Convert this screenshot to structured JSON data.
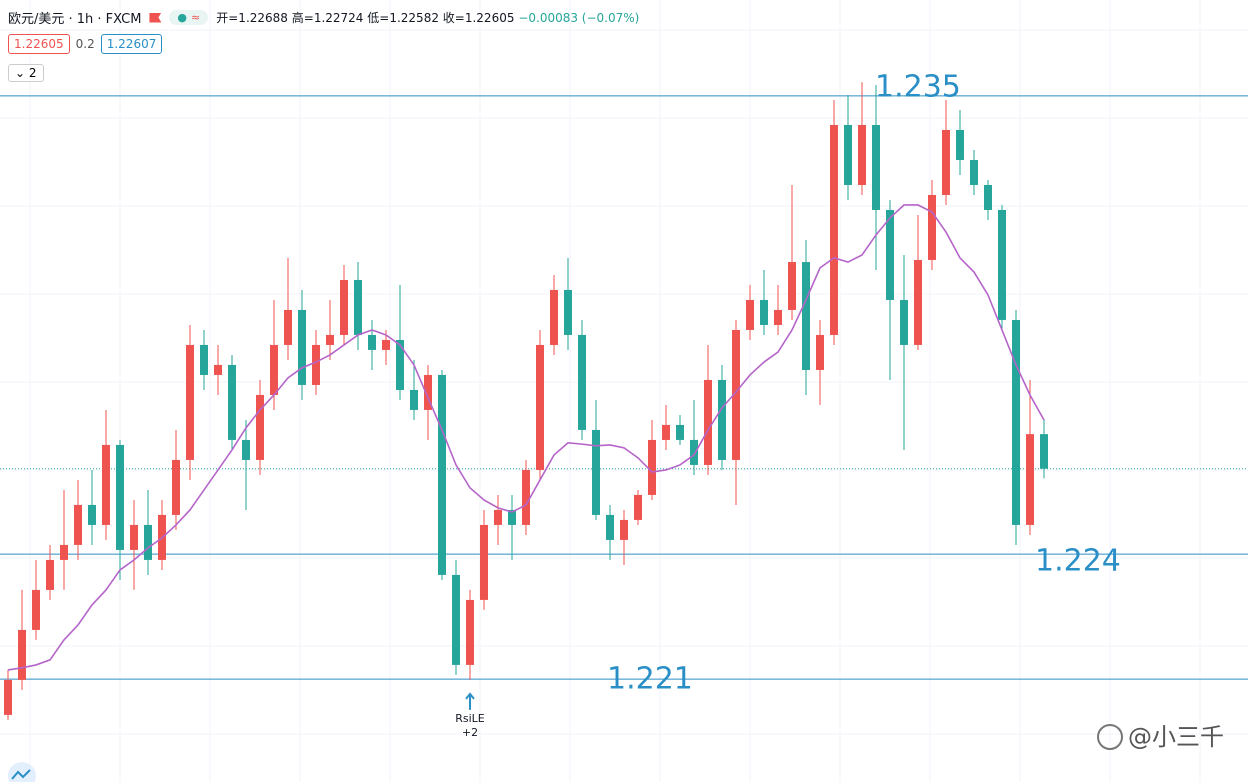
{
  "header": {
    "symbol": "欧元/美元 · 1h · FXCM",
    "ohlc": [
      "开=1.22688",
      "高=1.22724",
      "低=1.22582",
      "收=1.22605",
      "−0.00083 (−0.07%)"
    ],
    "bid": "1.22605",
    "spread": "0.2",
    "ask": "1.22607",
    "indicators_count": "2"
  },
  "watermark": "@小三千",
  "chart_data": {
    "type": "candlestick",
    "up_color": "#ef5350",
    "down_color": "#26a69a",
    "ylim": [
      1.21853,
      1.2373
    ],
    "open": [
      1.22014,
      1.22098,
      1.22218,
      1.22314,
      1.22386,
      1.22422,
      1.22518,
      1.2247,
      1.22662,
      1.2241,
      1.2247,
      1.22386,
      1.22494,
      1.22626,
      1.22902,
      1.2283,
      1.22854,
      1.22674,
      1.22626,
      1.22782,
      1.22902,
      1.22986,
      1.22806,
      1.22902,
      1.22926,
      1.23058,
      1.22926,
      1.2289,
      1.22914,
      1.22794,
      1.22746,
      1.2283,
      1.2235,
      1.22134,
      1.2229,
      1.2247,
      1.22506,
      1.2247,
      1.22602,
      1.22902,
      1.23034,
      1.22926,
      1.22698,
      1.22494,
      1.22434,
      1.22482,
      1.22542,
      1.22674,
      1.2271,
      1.22674,
      1.22614,
      1.22818,
      1.22626,
      1.22938,
      1.2301,
      1.2295,
      1.22986,
      1.23101,
      1.22842,
      1.22926,
      1.2343,
      1.23286,
      1.2343,
      1.23226,
      1.2301,
      1.22902,
      1.23106,
      1.23262,
      1.23418,
      1.23346,
      1.23286,
      1.23226,
      1.22962,
      1.2247,
      1.22688
    ],
    "high": [
      1.22122,
      1.22314,
      1.22386,
      1.22422,
      1.22554,
      1.22578,
      1.22602,
      1.22746,
      1.22674,
      1.2253,
      1.22554,
      1.2253,
      1.22698,
      1.2295,
      1.22938,
      1.22902,
      1.22878,
      1.22722,
      1.22818,
      1.2301,
      1.23111,
      1.23034,
      1.22938,
      1.2301,
      1.23094,
      1.23101,
      1.22962,
      1.22938,
      1.23046,
      1.22866,
      1.22854,
      1.22842,
      1.22386,
      1.22314,
      1.22506,
      1.22542,
      1.22542,
      1.22626,
      1.22938,
      1.2307,
      1.23111,
      1.22962,
      1.2277,
      1.22518,
      1.22506,
      1.22554,
      1.22722,
      1.22758,
      1.22734,
      1.2277,
      1.22902,
      1.22854,
      1.22962,
      1.23046,
      1.23082,
      1.23046,
      1.23286,
      1.23154,
      1.22962,
      1.2349,
      1.23502,
      1.23533,
      1.23526,
      1.2325,
      1.23118,
      1.23214,
      1.23298,
      1.2349,
      1.23466,
      1.2337,
      1.23298,
      1.23238,
      1.22986,
      1.22818,
      1.22724
    ],
    "low": [
      1.22002,
      1.22074,
      1.22194,
      1.2229,
      1.22314,
      1.22386,
      1.22422,
      1.22434,
      1.22338,
      1.22314,
      1.2235,
      1.22362,
      1.22458,
      1.22578,
      1.22794,
      1.22782,
      1.2265,
      1.22506,
      1.2259,
      1.22746,
      1.22866,
      1.2277,
      1.22782,
      1.22866,
      1.22902,
      1.2289,
      1.22842,
      1.22854,
      1.2277,
      1.22722,
      1.22674,
      1.22338,
      1.2211,
      1.22098,
      1.22266,
      1.22422,
      1.22386,
      1.22446,
      1.22578,
      1.22878,
      1.2289,
      1.22674,
      1.22482,
      1.22386,
      1.22374,
      1.2247,
      1.2253,
      1.2265,
      1.22662,
      1.2259,
      1.2259,
      1.22602,
      1.22518,
      1.22914,
      1.22926,
      1.22926,
      1.22962,
      1.22782,
      1.22758,
      1.22902,
      1.2325,
      1.23262,
      1.23082,
      1.22818,
      1.2265,
      1.2289,
      1.23082,
      1.23238,
      1.2331,
      1.23262,
      1.23202,
      1.22938,
      1.22422,
      1.22446,
      1.22582
    ],
    "close": [
      1.22098,
      1.22218,
      1.22314,
      1.22386,
      1.22422,
      1.22518,
      1.2247,
      1.22662,
      1.2241,
      1.2247,
      1.22386,
      1.22494,
      1.22626,
      1.22902,
      1.2283,
      1.22854,
      1.22674,
      1.22626,
      1.22782,
      1.22902,
      1.22986,
      1.22806,
      1.22902,
      1.22926,
      1.23058,
      1.22926,
      1.2289,
      1.22914,
      1.22794,
      1.22746,
      1.2283,
      1.2235,
      1.22134,
      1.2229,
      1.2247,
      1.22506,
      1.2247,
      1.22602,
      1.22902,
      1.23034,
      1.22926,
      1.22698,
      1.22494,
      1.22434,
      1.22482,
      1.22542,
      1.22674,
      1.2271,
      1.22674,
      1.22614,
      1.22818,
      1.22626,
      1.22938,
      1.2301,
      1.2295,
      1.22986,
      1.23101,
      1.22842,
      1.22926,
      1.2343,
      1.23286,
      1.2343,
      1.23226,
      1.2301,
      1.22902,
      1.23106,
      1.23262,
      1.23418,
      1.23346,
      1.23286,
      1.23226,
      1.22962,
      1.2247,
      1.22688,
      1.22605
    ],
    "overlay": {
      "color": "#b565c9",
      "values": [
        1.22122,
        1.22127,
        1.22134,
        1.22146,
        1.22194,
        1.2223,
        1.22278,
        1.22314,
        1.22362,
        1.22386,
        1.22415,
        1.22439,
        1.2247,
        1.22506,
        1.22554,
        1.22602,
        1.2265,
        1.22703,
        1.22746,
        1.22782,
        1.22823,
        1.22847,
        1.22861,
        1.22878,
        1.22902,
        1.22926,
        1.22938,
        1.22926,
        1.22902,
        1.22854,
        1.22775,
        1.22698,
        1.22614,
        1.22559,
        1.2253,
        1.22511,
        1.22501,
        1.22518,
        1.22578,
        1.22638,
        1.22667,
        1.22664,
        1.2266,
        1.22662,
        1.22655,
        1.22631,
        1.22597,
        1.22602,
        1.22614,
        1.22638,
        1.22698,
        1.22751,
        1.22789,
        1.2283,
        1.22861,
        1.22885,
        1.22938,
        1.2301,
        1.23087,
        1.23111,
        1.23101,
        1.23118,
        1.23166,
        1.23207,
        1.23238,
        1.23238,
        1.23221,
        1.23173,
        1.23111,
        1.23077,
        1.23022,
        1.22938,
        1.22854,
        1.22782,
        1.22722
      ]
    },
    "hlines": [
      1.235,
      1.224,
      1.221
    ],
    "hline_color": "#2a8fc6",
    "annotation": {
      "text": "RsiLE",
      "sub": "+2"
    },
    "grid": true
  }
}
